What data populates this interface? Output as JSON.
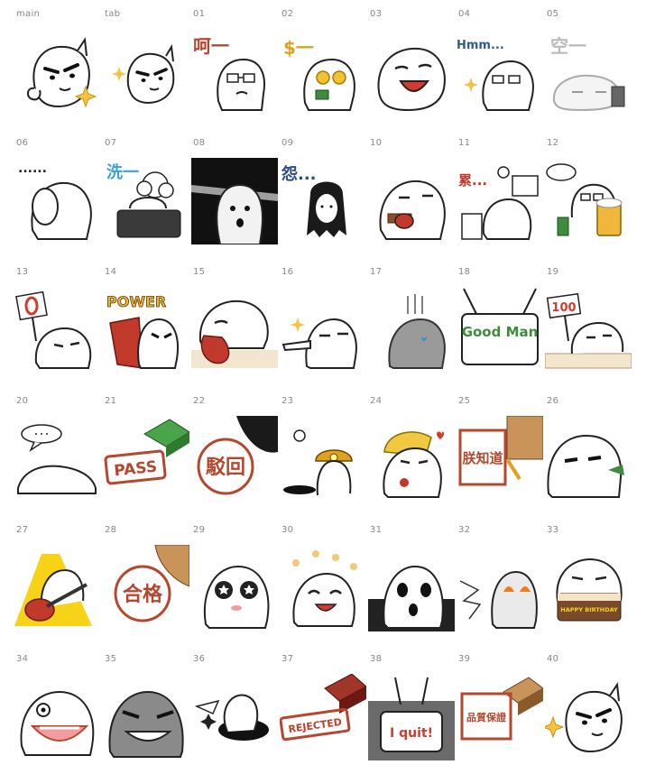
{
  "stickers": [
    {
      "label": "main",
      "icon": "smug-blob-sparkle-icon"
    },
    {
      "label": "tab",
      "icon": "smug-blob-sparkle-small-icon"
    },
    {
      "label": "01",
      "icon": "glasses-blob-heh-icon",
      "caption": "呵一"
    },
    {
      "label": "02",
      "icon": "money-eyes-blob-icon",
      "caption": "$一"
    },
    {
      "label": "03",
      "icon": "laughing-blob-icon"
    },
    {
      "label": "04",
      "icon": "hmm-glasses-blob-icon",
      "caption": "Hmm..."
    },
    {
      "label": "05",
      "icon": "empty-sleepy-blob-icon",
      "caption": "空一"
    },
    {
      "label": "06",
      "icon": "silent-blob-dots-icon",
      "caption": "......"
    },
    {
      "label": "07",
      "icon": "bath-blob-icon",
      "caption": "洗一"
    },
    {
      "label": "08",
      "icon": "shocked-blob-dark-icon"
    },
    {
      "label": "09",
      "icon": "grudge-hair-blob-icon",
      "caption": "怨..."
    },
    {
      "label": "10",
      "icon": "eating-blob-icon"
    },
    {
      "label": "11",
      "icon": "tired-office-blob-icon",
      "caption": "累..."
    },
    {
      "label": "12",
      "icon": "beer-cheers-blob-icon"
    },
    {
      "label": "13",
      "icon": "zero-score-sign-blob-icon"
    },
    {
      "label": "14",
      "icon": "power-cape-blob-icon",
      "caption": "POWER"
    },
    {
      "label": "15",
      "icon": "tongue-lick-blob-icon"
    },
    {
      "label": "16",
      "icon": "pointing-blob-icon"
    },
    {
      "label": "17",
      "icon": "gloomy-gray-blob-icon"
    },
    {
      "label": "18",
      "icon": "good-man-sign-icon",
      "caption": "Good Man"
    },
    {
      "label": "19",
      "icon": "hundred-score-sign-blob-icon",
      "caption": "100"
    },
    {
      "label": "20",
      "icon": "melted-blob-speech-icon"
    },
    {
      "label": "21",
      "icon": "pass-stamp-icon",
      "caption": "PASS"
    },
    {
      "label": "22",
      "icon": "rejected-chinese-stamp-icon",
      "caption": "駁回"
    },
    {
      "label": "23",
      "icon": "miner-helmet-blob-icon"
    },
    {
      "label": "24",
      "icon": "rose-romantic-blob-icon"
    },
    {
      "label": "25",
      "icon": "approved-chinese-stamp-icon",
      "caption": "朕知道"
    },
    {
      "label": "26",
      "icon": "smug-side-blob-icon"
    },
    {
      "label": "27",
      "icon": "guitar-rock-blob-icon"
    },
    {
      "label": "28",
      "icon": "qualified-stamp-icon",
      "caption": "合格"
    },
    {
      "label": "29",
      "icon": "star-eyes-blob-icon"
    },
    {
      "label": "30",
      "icon": "flower-happy-blob-icon"
    },
    {
      "label": "31",
      "icon": "shocked-spotlight-blob-icon"
    },
    {
      "label": "32",
      "icon": "fire-eyes-blob-icon"
    },
    {
      "label": "33",
      "icon": "birthday-cake-blob-icon",
      "caption": "HAPPY BIRTHDAY"
    },
    {
      "label": "34",
      "icon": "screaming-blob-icon"
    },
    {
      "label": "35",
      "icon": "angry-gray-blob-icon"
    },
    {
      "label": "36",
      "icon": "falling-hole-blob-icon"
    },
    {
      "label": "37",
      "icon": "rejected-english-stamp-icon",
      "caption": "REJECTED"
    },
    {
      "label": "38",
      "icon": "i-quit-sign-icon",
      "caption": "I quit!"
    },
    {
      "label": "39",
      "icon": "quality-guarantee-stamp-icon",
      "caption": "品質保證"
    },
    {
      "label": "40",
      "icon": "smug-blob-sparkle-repeat-icon"
    }
  ]
}
